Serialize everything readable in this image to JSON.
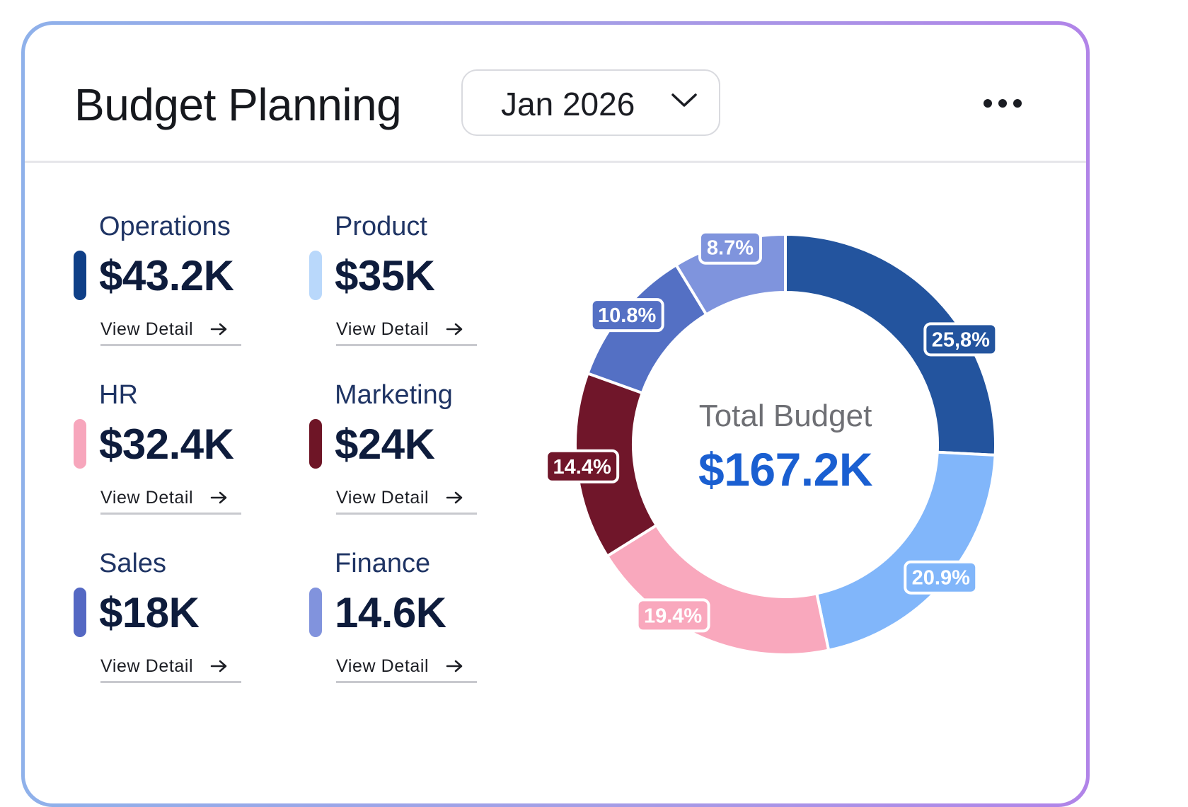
{
  "header": {
    "title": "Budget Planning",
    "month_selector": {
      "value": "Jan 2026",
      "icon": "chevron-down-icon"
    },
    "more_menu_icon": "more-horizontal-icon"
  },
  "categories": [
    {
      "name": "Operations",
      "amount": "$43.2K",
      "color": "#0f3f87",
      "link": "View Detail"
    },
    {
      "name": "Product",
      "amount": "$35K",
      "color": "#b9d8fb",
      "link": "View Detail"
    },
    {
      "name": "HR",
      "amount": "$32.4K",
      "color": "#f7a6bc",
      "link": "View Detail"
    },
    {
      "name": "Marketing",
      "amount": "$24K",
      "color": "#6e1526",
      "link": "View Detail"
    },
    {
      "name": "Sales",
      "amount": "$18K",
      "color": "#5468c3",
      "link": "View Detail"
    },
    {
      "name": "Finance",
      "amount": "14.6K",
      "color": "#8193dd",
      "link": "View Detail"
    }
  ],
  "chart_data": {
    "type": "pie",
    "donut": true,
    "center_label": "Total Budget",
    "center_value": "$167.2K",
    "slices": [
      {
        "label": "25,8%",
        "value": 25.8,
        "color": "#23549e"
      },
      {
        "label": "20.9%",
        "value": 20.9,
        "color": "#81b6fa"
      },
      {
        "label": "19.4%",
        "value": 19.4,
        "color": "#f9a8bd"
      },
      {
        "label": "14.4%",
        "value": 14.4,
        "color": "#70162a"
      },
      {
        "label": "10.8%",
        "value": 10.8,
        "color": "#5470c4"
      },
      {
        "label": "8.7%",
        "value": 8.7,
        "color": "#7f94dd"
      }
    ]
  }
}
